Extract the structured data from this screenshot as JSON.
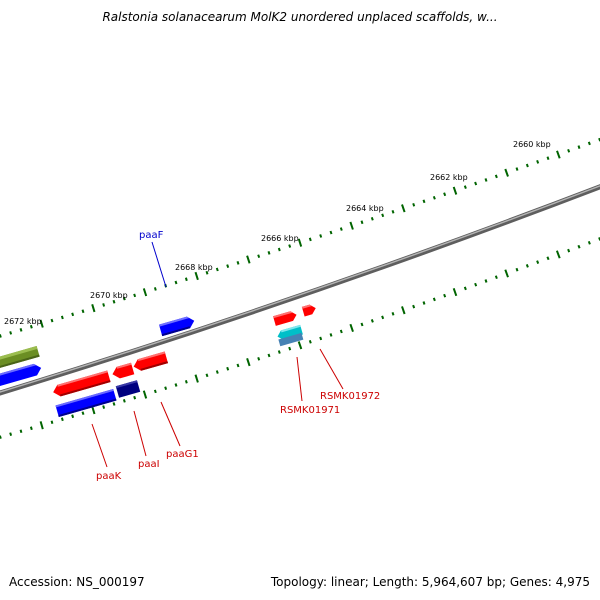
{
  "title": "Ralstonia solanacearum MolK2 unordered unplaced scaffolds, w...",
  "accession": "Accession: NS_000197",
  "topology": "Topology: linear; Length: 5,964,607 bp; Genes: 4,975",
  "ruler": {
    "ticks": [
      "2660 kbp",
      "2662 kbp",
      "2664 kbp",
      "2666 kbp",
      "2668 kbp",
      "2670 kbp",
      "2672 kbp"
    ]
  },
  "genes": [
    {
      "label": "paaF",
      "color": "#0000cc"
    },
    {
      "label": "paaK",
      "color": "#cc0000"
    },
    {
      "label": "paaI",
      "color": "#cc0000"
    },
    {
      "label": "paaG1",
      "color": "#cc0000"
    },
    {
      "label": "RSMK01971",
      "color": "#cc0000"
    },
    {
      "label": "RSMK01972",
      "color": "#cc0000"
    }
  ],
  "colors": {
    "backbone": "#808080",
    "tick": "#006400",
    "forward_gene": "#ff0000",
    "reverse_gene": "#0000ff",
    "olive_gene": "#6b8e23",
    "cyan_gene": "#00bfc8",
    "navy_gene": "#000080"
  }
}
